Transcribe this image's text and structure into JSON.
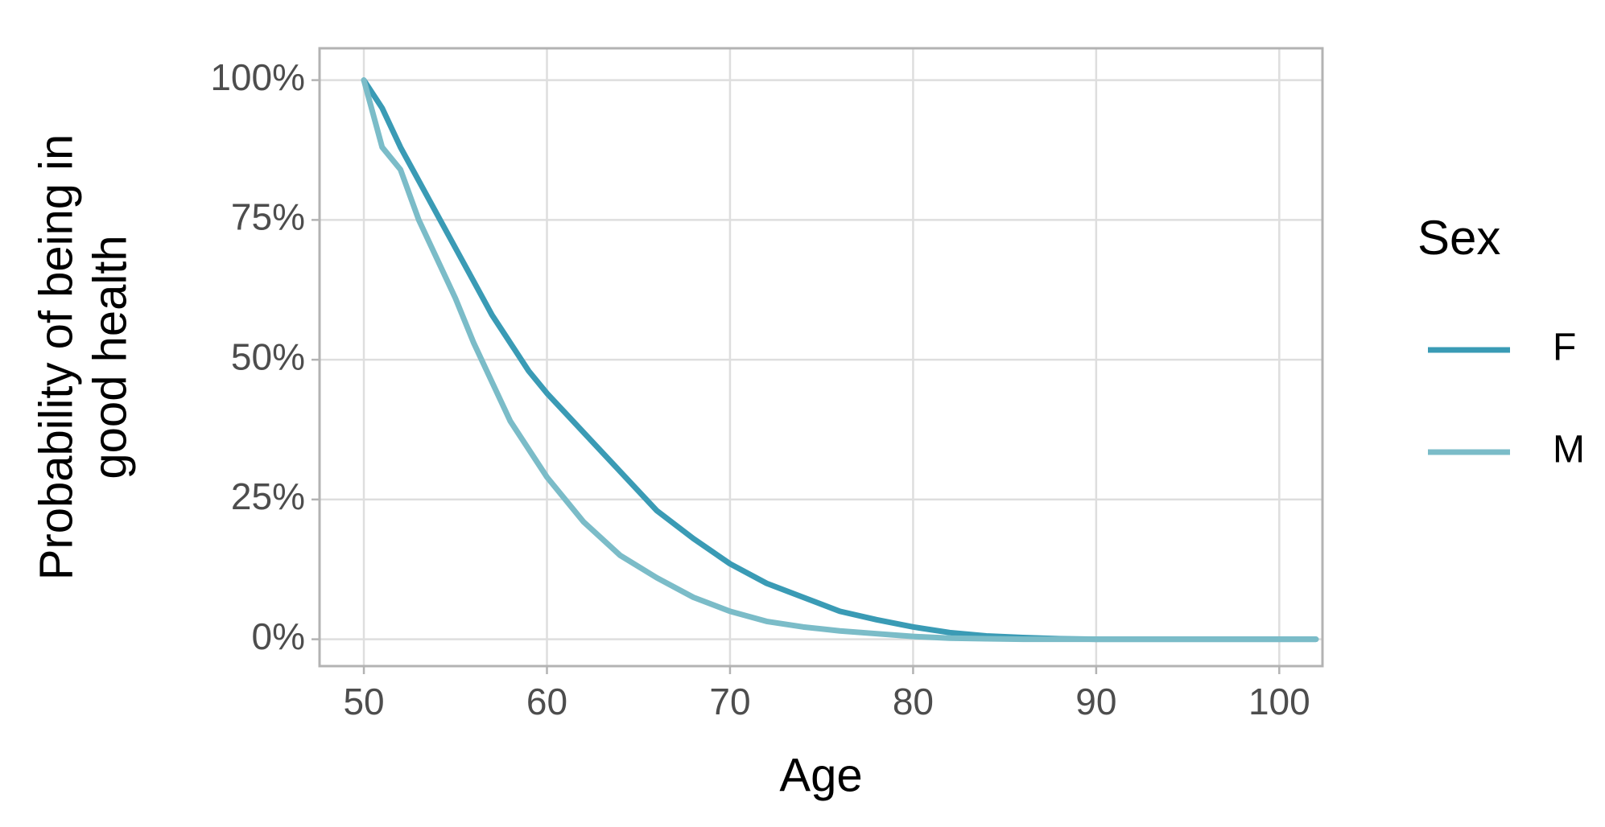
{
  "chart_data": {
    "type": "line",
    "x_label": "Age",
    "y_label": "Probability of being in\ngood health",
    "legend_title": "Sex",
    "legend_position": "right",
    "grid": true,
    "x": [
      50,
      51,
      52,
      53,
      54,
      55,
      56,
      57,
      58,
      59,
      60,
      62,
      64,
      66,
      68,
      70,
      72,
      74,
      76,
      78,
      80,
      82,
      84,
      86,
      88,
      90,
      102
    ],
    "series": [
      {
        "name": "F",
        "color": "#3a9bb5",
        "values": [
          100,
          95,
          88,
          82,
          76,
          70,
          64,
          58,
          53,
          48,
          44,
          37,
          30,
          23,
          18,
          13.5,
          10,
          7.5,
          5,
          3.5,
          2.2,
          1.2,
          0.6,
          0.3,
          0.1,
          0,
          0
        ]
      },
      {
        "name": "M",
        "color": "#7bbcc8",
        "values": [
          100,
          88,
          84,
          75,
          68,
          61,
          53,
          46,
          39,
          34,
          29,
          21,
          15,
          11,
          7.5,
          5,
          3.2,
          2.2,
          1.5,
          1,
          0.5,
          0.2,
          0.1,
          0,
          0,
          0,
          0
        ]
      }
    ],
    "xlim": [
      47.58,
      102.36
    ],
    "ylim": [
      -4.8,
      105.7
    ],
    "xticks": [
      50,
      60,
      70,
      80,
      90,
      100
    ],
    "yticks": [
      {
        "value": 0,
        "label": "0%"
      },
      {
        "value": 25,
        "label": "25%"
      },
      {
        "value": 50,
        "label": "50%"
      },
      {
        "value": 75,
        "label": "75%"
      },
      {
        "value": 100,
        "label": "100%"
      }
    ]
  }
}
